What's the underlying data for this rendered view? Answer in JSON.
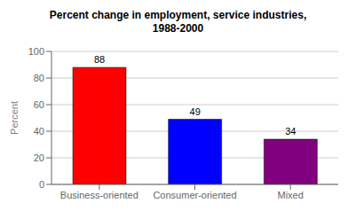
{
  "chart_data": {
    "type": "bar",
    "title": "Percent change in employment, service industries,\n1988-2000",
    "categories": [
      "Business-oriented",
      "Consumer-oriented",
      "Mixed"
    ],
    "values": [
      88,
      49,
      34
    ],
    "colors": [
      "#ff0000",
      "#0000ff",
      "#800080"
    ],
    "ylabel": "Percent",
    "ylim": [
      0,
      100
    ],
    "yticks": [
      0,
      20,
      40,
      60,
      80,
      100
    ],
    "grid": true,
    "data_labels": true
  }
}
